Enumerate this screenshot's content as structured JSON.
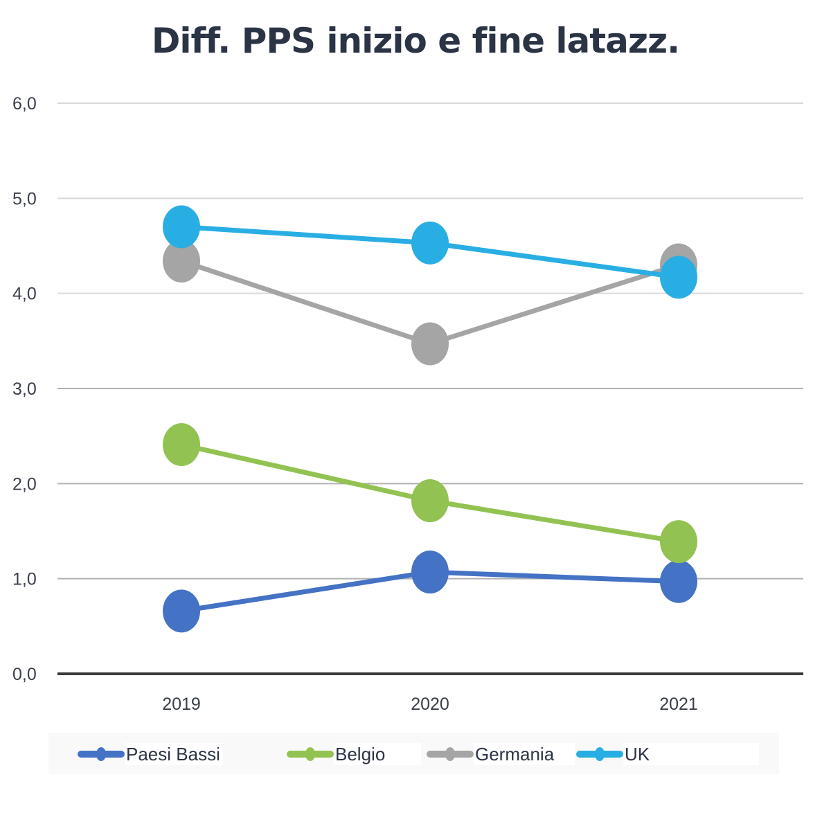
{
  "chart_data": {
    "type": "line",
    "title": "Diff. PPS inizio e fine latazz.",
    "categories": [
      "2019",
      "2020",
      "2021"
    ],
    "ylim": [
      0,
      6
    ],
    "yticks": [
      "0,0",
      "1,0",
      "2,0",
      "3,0",
      "4,0",
      "5,0",
      "6,0"
    ],
    "grid": true,
    "legend_position": "bottom",
    "series": [
      {
        "name": "Paesi Bassi",
        "color": "#4472c4",
        "values": [
          0.66,
          1.07,
          0.97
        ]
      },
      {
        "name": "Belgio",
        "color": "#92c352",
        "values": [
          2.41,
          1.82,
          1.39
        ]
      },
      {
        "name": "Germania",
        "color": "#a5a5a5",
        "values": [
          4.34,
          3.47,
          4.3
        ]
      },
      {
        "name": "UK",
        "color": "#29aee4",
        "values": [
          4.7,
          4.53,
          4.17
        ]
      }
    ]
  }
}
